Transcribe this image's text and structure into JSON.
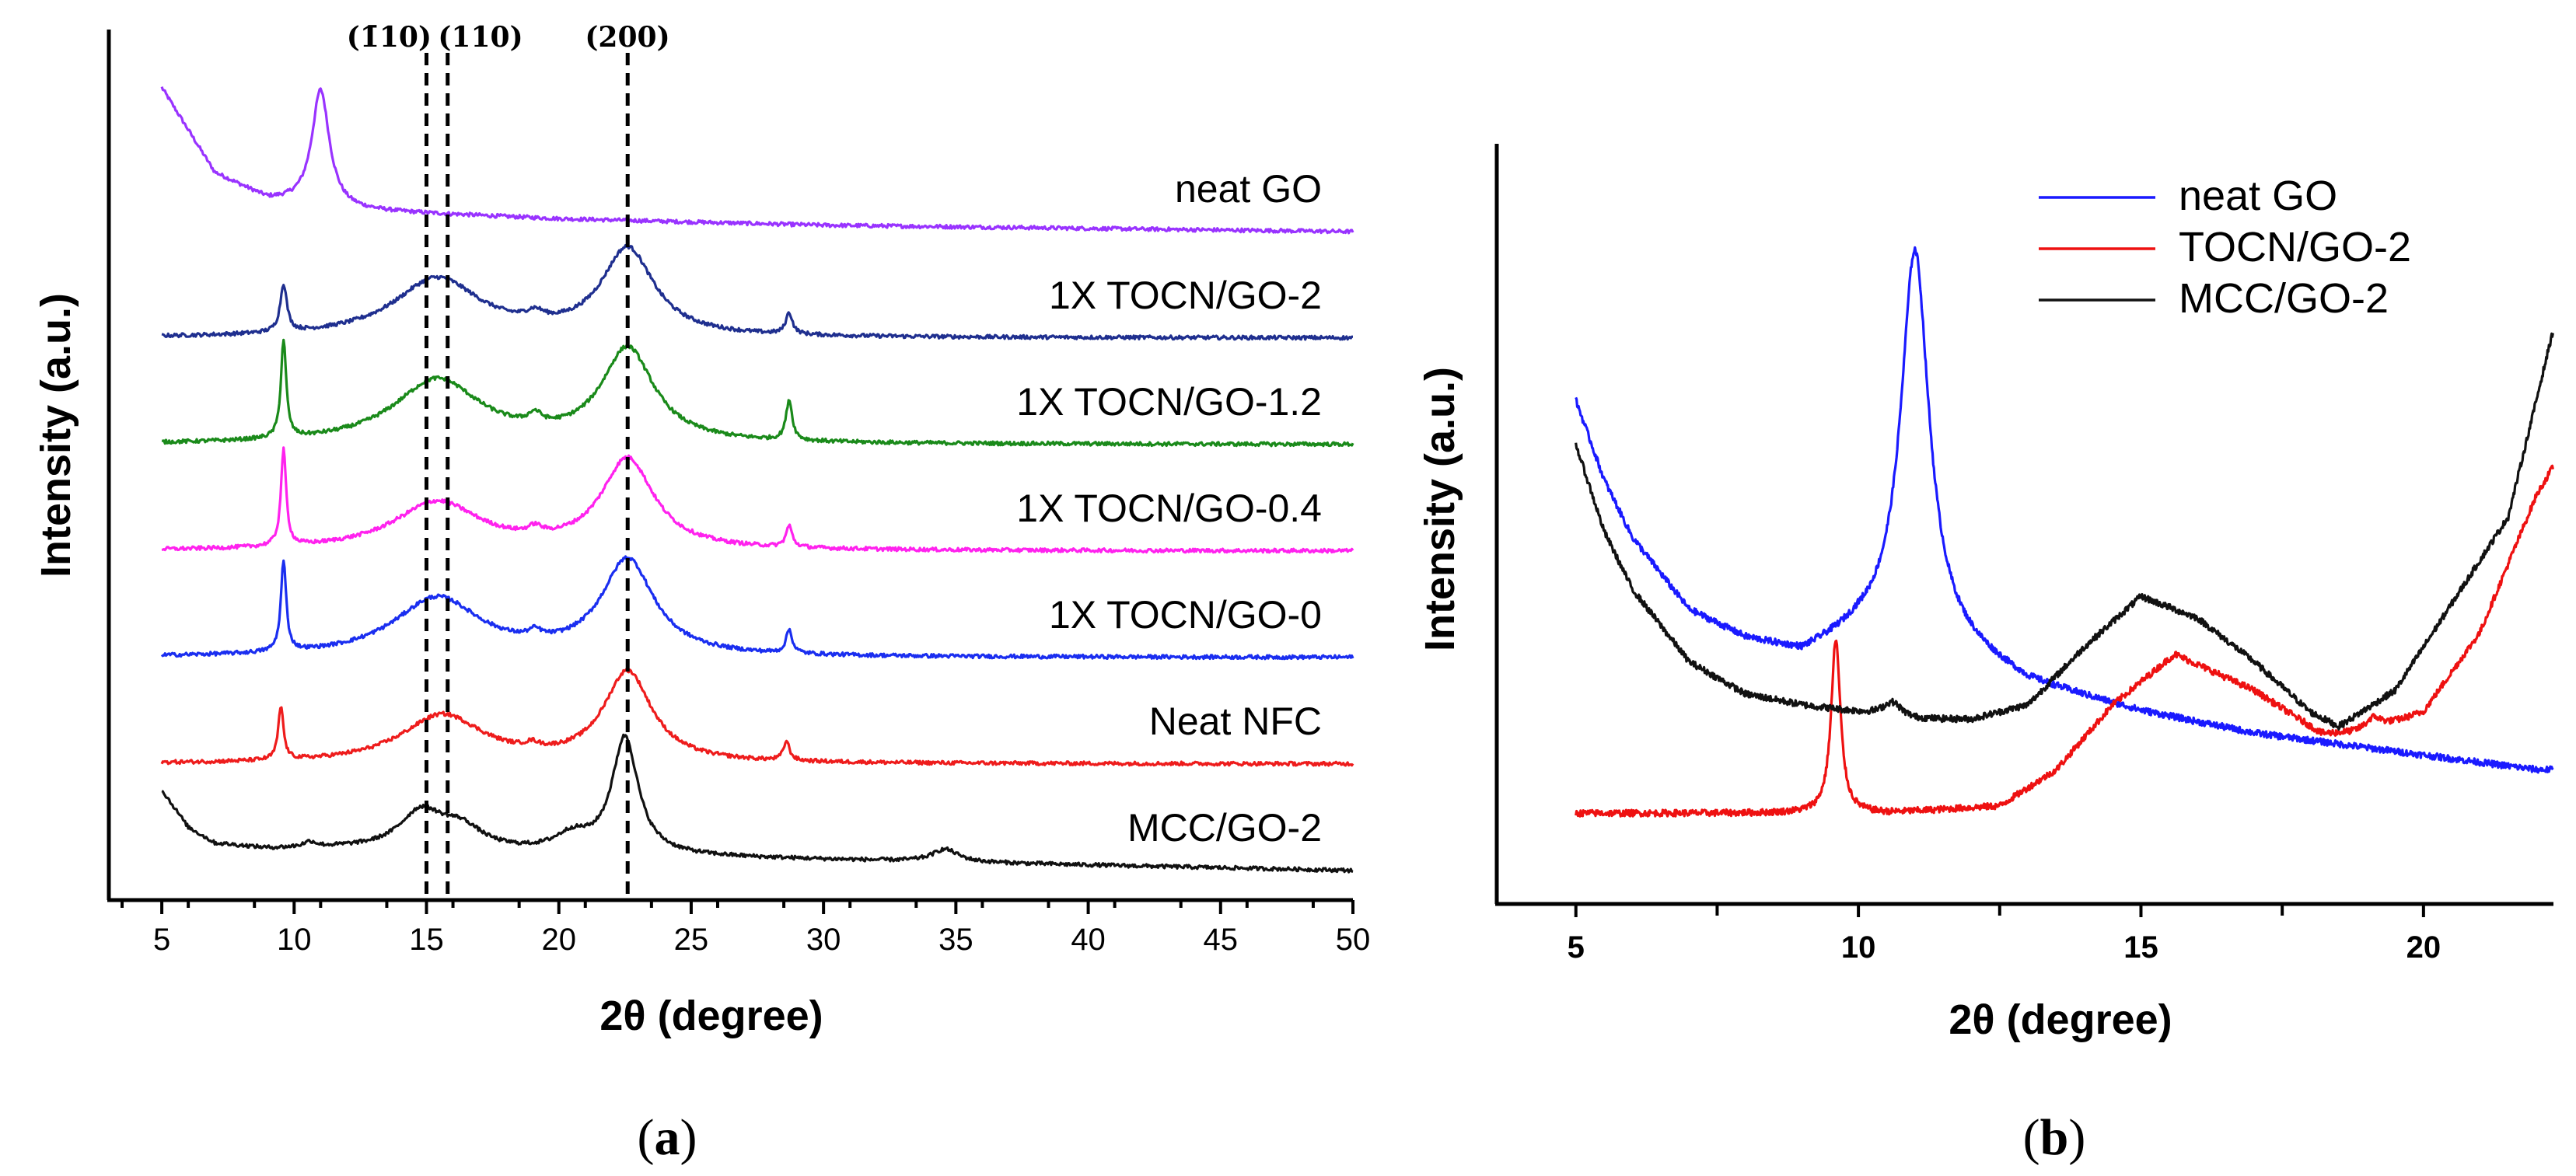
{
  "chart_data": [
    {
      "type": "line",
      "panel_label": "a",
      "xlabel": "2θ (degree)",
      "ylabel": "Intensity (a.u.)",
      "xlim": [
        3,
        50
      ],
      "x_ticks": [
        5,
        10,
        15,
        20,
        25,
        30,
        35,
        40,
        45,
        50
      ],
      "y_ticks_shown": false,
      "stacked_offset": true,
      "reflections": [
        {
          "label": "(1̅10)",
          "display": "(1̄10)",
          "x": 15.0
        },
        {
          "label": "(110)",
          "display": "(110)",
          "x": 15.8
        },
        {
          "label": "(200)",
          "display": "(200)",
          "x": 22.6
        }
      ],
      "series": [
        {
          "name": "neat GO",
          "color": "#9933ff",
          "offset": 6.0,
          "baseline": [
            [
              5,
              1.35
            ],
            [
              7,
              0.55
            ],
            [
              9,
              0.3
            ],
            [
              12,
              0.2
            ],
            [
              20,
              0.12
            ],
            [
              30,
              0.06
            ],
            [
              40,
              0.03
            ],
            [
              50,
              0.0
            ]
          ],
          "peaks": [
            {
              "x": 11.0,
              "h": 1.1,
              "w": 0.4
            }
          ]
        },
        {
          "name": "1X TOCN/GO-2",
          "color": "#1f2f8f",
          "offset": 5.0,
          "baseline": [
            [
              5,
              0.0
            ],
            [
              50,
              0.0
            ]
          ],
          "peaks": [
            {
              "x": 9.6,
              "h": 0.45,
              "w": 0.15
            },
            {
              "x": 15.4,
              "h": 0.55,
              "w": 2.0
            },
            {
              "x": 19.1,
              "h": 0.08,
              "w": 0.4
            },
            {
              "x": 22.6,
              "h": 0.82,
              "w": 1.2
            },
            {
              "x": 28.7,
              "h": 0.2,
              "w": 0.15
            }
          ]
        },
        {
          "name": "1X TOCN/GO-1.2",
          "color": "#1a8a1a",
          "offset": 4.0,
          "baseline": [
            [
              5,
              0.0
            ],
            [
              50,
              0.0
            ]
          ],
          "peaks": [
            {
              "x": 9.6,
              "h": 0.92,
              "w": 0.12
            },
            {
              "x": 15.4,
              "h": 0.6,
              "w": 2.0
            },
            {
              "x": 19.1,
              "h": 0.1,
              "w": 0.3
            },
            {
              "x": 22.6,
              "h": 0.88,
              "w": 1.2
            },
            {
              "x": 28.7,
              "h": 0.38,
              "w": 0.14
            }
          ]
        },
        {
          "name": "1X TOCN/GO-0.4",
          "color": "#ff22ee",
          "offset": 3.0,
          "baseline": [
            [
              5,
              0.0
            ],
            [
              50,
              0.0
            ]
          ],
          "peaks": [
            {
              "x": 9.6,
              "h": 0.9,
              "w": 0.12
            },
            {
              "x": 15.4,
              "h": 0.45,
              "w": 2.0
            },
            {
              "x": 19.1,
              "h": 0.07,
              "w": 0.3
            },
            {
              "x": 22.6,
              "h": 0.85,
              "w": 1.2
            },
            {
              "x": 28.7,
              "h": 0.2,
              "w": 0.14
            }
          ]
        },
        {
          "name": "1X TOCN/GO-0",
          "color": "#1a2ef0",
          "offset": 2.0,
          "baseline": [
            [
              5,
              0.0
            ],
            [
              50,
              0.0
            ]
          ],
          "peaks": [
            {
              "x": 9.6,
              "h": 0.85,
              "w": 0.12
            },
            {
              "x": 15.4,
              "h": 0.55,
              "w": 2.0
            },
            {
              "x": 19.1,
              "h": 0.07,
              "w": 0.3
            },
            {
              "x": 22.6,
              "h": 0.9,
              "w": 1.2
            },
            {
              "x": 28.7,
              "h": 0.22,
              "w": 0.14
            }
          ]
        },
        {
          "name": "Neat NFC",
          "color": "#ee1c1c",
          "offset": 1.0,
          "baseline": [
            [
              5,
              0.0
            ],
            [
              50,
              0.0
            ]
          ],
          "peaks": [
            {
              "x": 9.5,
              "h": 0.5,
              "w": 0.12
            },
            {
              "x": 15.6,
              "h": 0.45,
              "w": 1.9
            },
            {
              "x": 19.0,
              "h": 0.05,
              "w": 0.3
            },
            {
              "x": 22.6,
              "h": 0.85,
              "w": 1.1
            },
            {
              "x": 28.6,
              "h": 0.18,
              "w": 0.14
            }
          ]
        },
        {
          "name": "MCC/GO-2",
          "color": "#111111",
          "offset": 0.0,
          "baseline": [
            [
              5,
              0.75
            ],
            [
              6,
              0.4
            ],
            [
              7,
              0.25
            ],
            [
              9,
              0.2
            ],
            [
              12,
              0.2
            ],
            [
              20,
              0.15
            ],
            [
              30,
              0.1
            ],
            [
              40,
              0.05
            ],
            [
              50,
              0.0
            ]
          ],
          "peaks": [
            {
              "x": 10.6,
              "h": 0.05,
              "w": 0.3
            },
            {
              "x": 14.8,
              "h": 0.35,
              "w": 1.0
            },
            {
              "x": 16.3,
              "h": 0.2,
              "w": 1.0
            },
            {
              "x": 20.5,
              "h": 0.15,
              "w": 0.8
            },
            {
              "x": 22.5,
              "h": 1.1,
              "w": 0.6
            },
            {
              "x": 34.6,
              "h": 0.12,
              "w": 0.6
            }
          ]
        }
      ]
    },
    {
      "type": "line",
      "panel_label": "b",
      "xlabel": "2θ (degree)",
      "ylabel": "Intensity (a.u.)",
      "xlim": [
        3.6,
        22.3
      ],
      "ylim": [
        0,
        100
      ],
      "x_ticks": [
        5,
        10,
        15,
        20
      ],
      "x_minor_ticks": [
        7.5,
        12.5,
        17.5
      ],
      "y_ticks_shown": false,
      "legend_position": "top-right",
      "series": [
        {
          "name": "neat GO",
          "color": "#1a1aff",
          "baseline": [
            [
              5,
              66
            ],
            [
              5.5,
              55
            ],
            [
              6,
              47
            ],
            [
              7,
              37
            ],
            [
              8,
              33
            ],
            [
              9,
              31
            ],
            [
              10,
              34
            ],
            [
              11,
              35
            ],
            [
              12,
              31
            ],
            [
              13,
              27
            ],
            [
              15,
              23
            ],
            [
              17,
              20
            ],
            [
              20,
              17
            ],
            [
              22,
              15
            ]
          ],
          "peaks": [
            {
              "x": 11.0,
              "h": 52,
              "w": 0.3
            }
          ]
        },
        {
          "name": "TOCN/GO-2",
          "color": "#ee1111",
          "baseline": [
            [
              5,
              9
            ],
            [
              9,
              9
            ],
            [
              10.5,
              9
            ],
            [
              12.5,
              10
            ],
            [
              13.5,
              15
            ],
            [
              14.5,
              24
            ],
            [
              15.6,
              31
            ],
            [
              17,
              26
            ],
            [
              18.2,
              20
            ],
            [
              19,
              20
            ],
            [
              20,
              23
            ],
            [
              21,
              34
            ],
            [
              22,
              53
            ],
            [
              22.3,
              57
            ]
          ],
          "peaks": [
            {
              "x": 9.6,
              "h": 24,
              "w": 0.1
            },
            {
              "x": 19.1,
              "h": 2,
              "w": 0.2
            }
          ]
        },
        {
          "name": "MCC/GO-2",
          "color": "#111111",
          "baseline": [
            [
              5,
              60
            ],
            [
              5.5,
              48
            ],
            [
              6,
              40
            ],
            [
              7,
              30
            ],
            [
              8,
              25.5
            ],
            [
              9,
              24
            ],
            [
              10,
              23
            ],
            [
              11,
              22
            ],
            [
              12,
              22
            ],
            [
              13,
              24
            ],
            [
              14,
              32
            ],
            [
              15,
              39
            ],
            [
              16,
              36
            ],
            [
              17,
              30
            ],
            [
              18,
              23
            ],
            [
              18.5,
              21
            ],
            [
              19.5,
              26
            ],
            [
              20.5,
              38
            ],
            [
              21.5,
              50
            ],
            [
              22.3,
              76
            ]
          ],
          "peaks": [
            {
              "x": 10.6,
              "h": 2,
              "w": 0.2
            }
          ]
        }
      ]
    }
  ],
  "captions": {
    "a": "a",
    "b": "b"
  }
}
